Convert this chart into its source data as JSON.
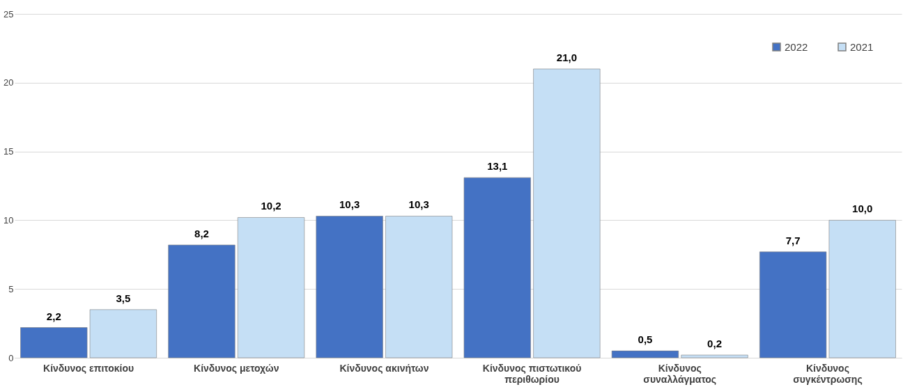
{
  "chart_data": {
    "type": "bar",
    "categories": [
      "Κίνδυνος επιτοκίου",
      "Κίνδυνος μετοχών",
      "Κίνδυνος ακινήτων",
      "Κίνδυνος πιστωτικού περιθωρίου",
      "Κίνδυνος συναλλάγματος",
      "Κίνδυνος συγκέντρωσης"
    ],
    "series": [
      {
        "name": "2022",
        "color": "#4472c4",
        "values": [
          2.2,
          8.2,
          10.3,
          13.1,
          0.5,
          7.7
        ],
        "value_labels": [
          "2,2",
          "8,2",
          "10,3",
          "13,1",
          "0,5",
          "7,7"
        ]
      },
      {
        "name": "2021",
        "color": "#c5dff5",
        "values": [
          3.5,
          10.2,
          10.3,
          21.0,
          0.2,
          10.0
        ],
        "value_labels": [
          "3,5",
          "10,2",
          "10,3",
          "21,0",
          "0,2",
          "10,0"
        ]
      }
    ],
    "ylim": [
      0,
      25
    ],
    "yticks": [
      0,
      5,
      10,
      15,
      20,
      25
    ],
    "grid": "y",
    "legend": "top right"
  }
}
